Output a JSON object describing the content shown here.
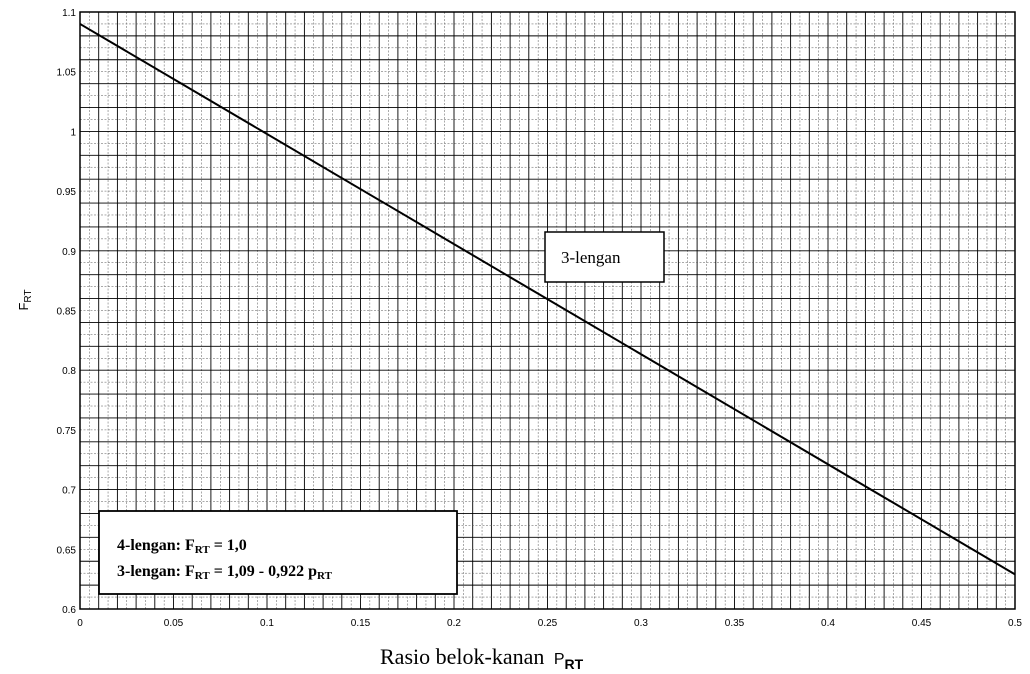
{
  "chart_data": {
    "type": "line",
    "xlabel": "Rasio belok-kanan",
    "xlabel_symbol": "P",
    "xlabel_sub": "RT",
    "ylabel": "F",
    "ylabel_sub": "RT",
    "xlim": [
      0,
      0.5
    ],
    "ylim": [
      0.6,
      1.1
    ],
    "x_ticks": [
      "0",
      "0.05",
      "0.1",
      "0.15",
      "0.2",
      "0.25",
      "0.3",
      "0.35",
      "0.4",
      "0.45",
      "0.5"
    ],
    "y_ticks": [
      "0.6",
      "0.65",
      "0.7",
      "0.75",
      "0.8",
      "0.85",
      "0.9",
      "0.95",
      "1",
      "1.05",
      "1.1"
    ],
    "grid": true,
    "series": [
      {
        "name": "3-lengan",
        "x": [
          0,
          0.5
        ],
        "y": [
          1.09,
          0.629
        ]
      }
    ],
    "annotations": {
      "series_label": "3-lengan",
      "formula_box": {
        "line1_prefix": "4-lengan: F",
        "line1_sub": "RT",
        "line1_suffix": " = 1,0",
        "line2_prefix": "3-lengan: F",
        "line2_sub": "RT",
        "line2_mid": " = 1,09 - 0,922 p",
        "line2_sub2": "RT"
      }
    }
  }
}
